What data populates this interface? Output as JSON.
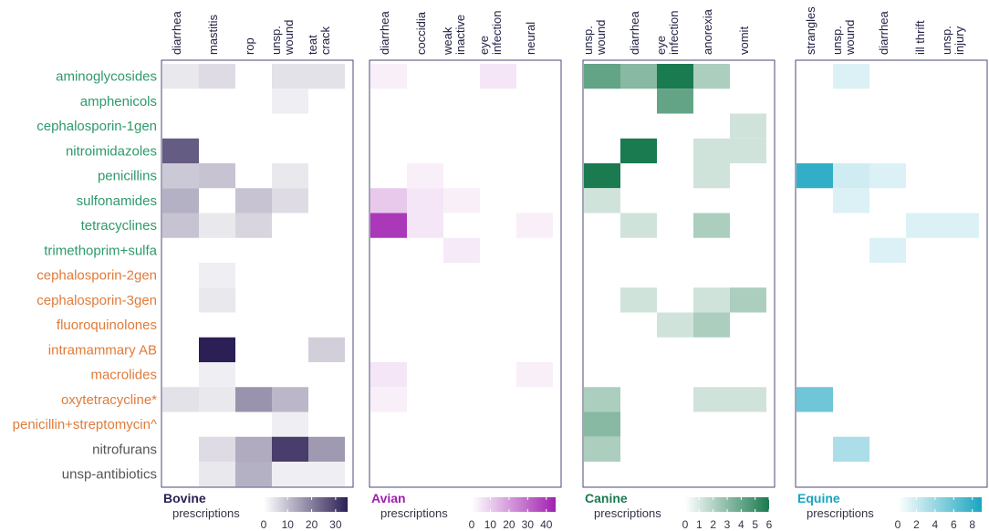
{
  "chart_data": {
    "type": "heatmap",
    "rows": [
      "aminoglycosides",
      "amphenicols",
      "cephalosporin-1gen",
      "nitroimidazoles",
      "penicillins",
      "sulfonamides",
      "tetracyclines",
      "trimethoprim+sulfa",
      "cephalosporin-2gen",
      "cephalosporin-3gen",
      "fluoroquinolones",
      "intramammary AB",
      "macrolides",
      "oxytetracycline*",
      "penicillin+streptomycin^",
      "nitrofurans",
      "unsp-antibiotics"
    ],
    "row_colors": [
      "#2e9a6c",
      "#2e9a6c",
      "#2e9a6c",
      "#2e9a6c",
      "#2e9a6c",
      "#2e9a6c",
      "#2e9a6c",
      "#2e9a6c",
      "#e07b39",
      "#e07b39",
      "#e07b39",
      "#e07b39",
      "#e07b39",
      "#e07b39",
      "#e07b39",
      "#555555",
      "#555555"
    ],
    "panels": [
      {
        "name": "Bovine",
        "legend_label": "prescriptions",
        "color": "#2c1f55",
        "title_color": "#2c1f55",
        "max": 35,
        "ticks": [
          "0",
          "10",
          "20",
          "30"
        ],
        "tick_values": [
          0,
          10,
          20,
          30
        ],
        "categories": [
          "diarrhea",
          "mastitis",
          "rop",
          "unsp.\nwound",
          "teat\ncrack"
        ],
        "values": [
          [
            2,
            4,
            0,
            3,
            3
          ],
          [
            0,
            0,
            0,
            1,
            0
          ],
          [
            0,
            0,
            0,
            0,
            0
          ],
          [
            25,
            0,
            0,
            0,
            0
          ],
          [
            7,
            8,
            0,
            2,
            0
          ],
          [
            11,
            0,
            8,
            4,
            0
          ],
          [
            8,
            2,
            5,
            0,
            0
          ],
          [
            0,
            0,
            0,
            0,
            0
          ],
          [
            0,
            1,
            0,
            0,
            0
          ],
          [
            0,
            2,
            0,
            0,
            0
          ],
          [
            0,
            0,
            0,
            0,
            0
          ],
          [
            0,
            35,
            0,
            0,
            6
          ],
          [
            0,
            1,
            0,
            0,
            0
          ],
          [
            3,
            2,
            16,
            10,
            0
          ],
          [
            0,
            0,
            0,
            1,
            0
          ],
          [
            0,
            4,
            12,
            30,
            15
          ],
          [
            0,
            2,
            11,
            1,
            1
          ]
        ]
      },
      {
        "name": "Avian",
        "legend_label": "prescriptions",
        "color": "#a020b0",
        "title_color": "#a020b0",
        "max": 45,
        "ticks": [
          "0",
          "10",
          "20",
          "30",
          "40"
        ],
        "tick_values": [
          0,
          10,
          20,
          30,
          40
        ],
        "categories": [
          "diarrhea",
          "coccidia",
          "weak\ninactive",
          "eye\ninfection",
          "neural"
        ],
        "values": [
          [
            1,
            0,
            0,
            3,
            0
          ],
          [
            0,
            0,
            0,
            0,
            0
          ],
          [
            0,
            0,
            0,
            0,
            0
          ],
          [
            0,
            0,
            0,
            0,
            0
          ],
          [
            0,
            1,
            0,
            0,
            0
          ],
          [
            9,
            3,
            1,
            0,
            0
          ],
          [
            40,
            3,
            0,
            0,
            1
          ],
          [
            0,
            0,
            2,
            0,
            0
          ],
          [
            0,
            0,
            0,
            0,
            0
          ],
          [
            0,
            0,
            0,
            0,
            0
          ],
          [
            0,
            0,
            0,
            0,
            0
          ],
          [
            0,
            0,
            0,
            0,
            0
          ],
          [
            3,
            0,
            0,
            0,
            1
          ],
          [
            1,
            0,
            0,
            0,
            0
          ],
          [
            0,
            0,
            0,
            0,
            0
          ],
          [
            0,
            0,
            0,
            0,
            0
          ],
          [
            0,
            0,
            0,
            0,
            0
          ]
        ]
      },
      {
        "name": "Canine",
        "legend_label": "prescriptions",
        "color": "#1a7a50",
        "title_color": "#1a7a50",
        "max": 6,
        "ticks": [
          "0",
          "1",
          "2",
          "3",
          "4",
          "5",
          "6"
        ],
        "tick_values": [
          0,
          1,
          2,
          3,
          4,
          5,
          6
        ],
        "categories": [
          "unsp.\nwound",
          "diarrhea",
          "eye\ninfection",
          "anorexia",
          "vomit"
        ],
        "values": [
          [
            4,
            3,
            6,
            2,
            0
          ],
          [
            0,
            0,
            4,
            0,
            0
          ],
          [
            0,
            0,
            0,
            0,
            1
          ],
          [
            0,
            6,
            0,
            1,
            1
          ],
          [
            6,
            0,
            0,
            1,
            0
          ],
          [
            1,
            0,
            0,
            0,
            0
          ],
          [
            0,
            1,
            0,
            2,
            0
          ],
          [
            0,
            0,
            0,
            0,
            0
          ],
          [
            0,
            0,
            0,
            0,
            0
          ],
          [
            0,
            1,
            0,
            1,
            2
          ],
          [
            0,
            0,
            1,
            2,
            0
          ],
          [
            0,
            0,
            0,
            0,
            0
          ],
          [
            0,
            0,
            0,
            0,
            0
          ],
          [
            2,
            0,
            0,
            1,
            1
          ],
          [
            3,
            0,
            0,
            0,
            0
          ],
          [
            2,
            0,
            0,
            0,
            0
          ],
          [
            0,
            0,
            0,
            0,
            0
          ]
        ]
      },
      {
        "name": "Equine",
        "legend_label": "prescriptions",
        "color": "#1aa5c0",
        "title_color": "#1aa5c0",
        "max": 9,
        "ticks": [
          "0",
          "2",
          "4",
          "6",
          "8"
        ],
        "tick_values": [
          0,
          2,
          4,
          6,
          8
        ],
        "categories": [
          "strangles",
          "unsp.\nwound",
          "diarrhea",
          "ill thrift",
          "unsp.\ninjury"
        ],
        "values": [
          [
            0,
            1,
            0,
            0,
            0
          ],
          [
            0,
            0,
            0,
            0,
            0
          ],
          [
            0,
            0,
            0,
            0,
            0
          ],
          [
            0,
            0,
            0,
            0,
            0
          ],
          [
            8,
            1.5,
            1,
            0,
            0
          ],
          [
            0,
            1,
            0,
            0,
            0
          ],
          [
            0,
            0,
            0,
            1,
            1
          ],
          [
            0,
            0,
            1,
            0,
            0
          ],
          [
            0,
            0,
            0,
            0,
            0
          ],
          [
            0,
            0,
            0,
            0,
            0
          ],
          [
            0,
            0,
            0,
            0,
            0
          ],
          [
            0,
            0,
            0,
            0,
            0
          ],
          [
            0,
            0,
            0,
            0,
            0
          ],
          [
            5.5,
            0,
            0,
            0,
            0
          ],
          [
            0,
            0,
            0,
            0,
            0
          ],
          [
            0,
            3,
            0,
            0,
            0
          ],
          [
            0,
            0,
            0,
            0,
            0
          ]
        ]
      }
    ]
  }
}
